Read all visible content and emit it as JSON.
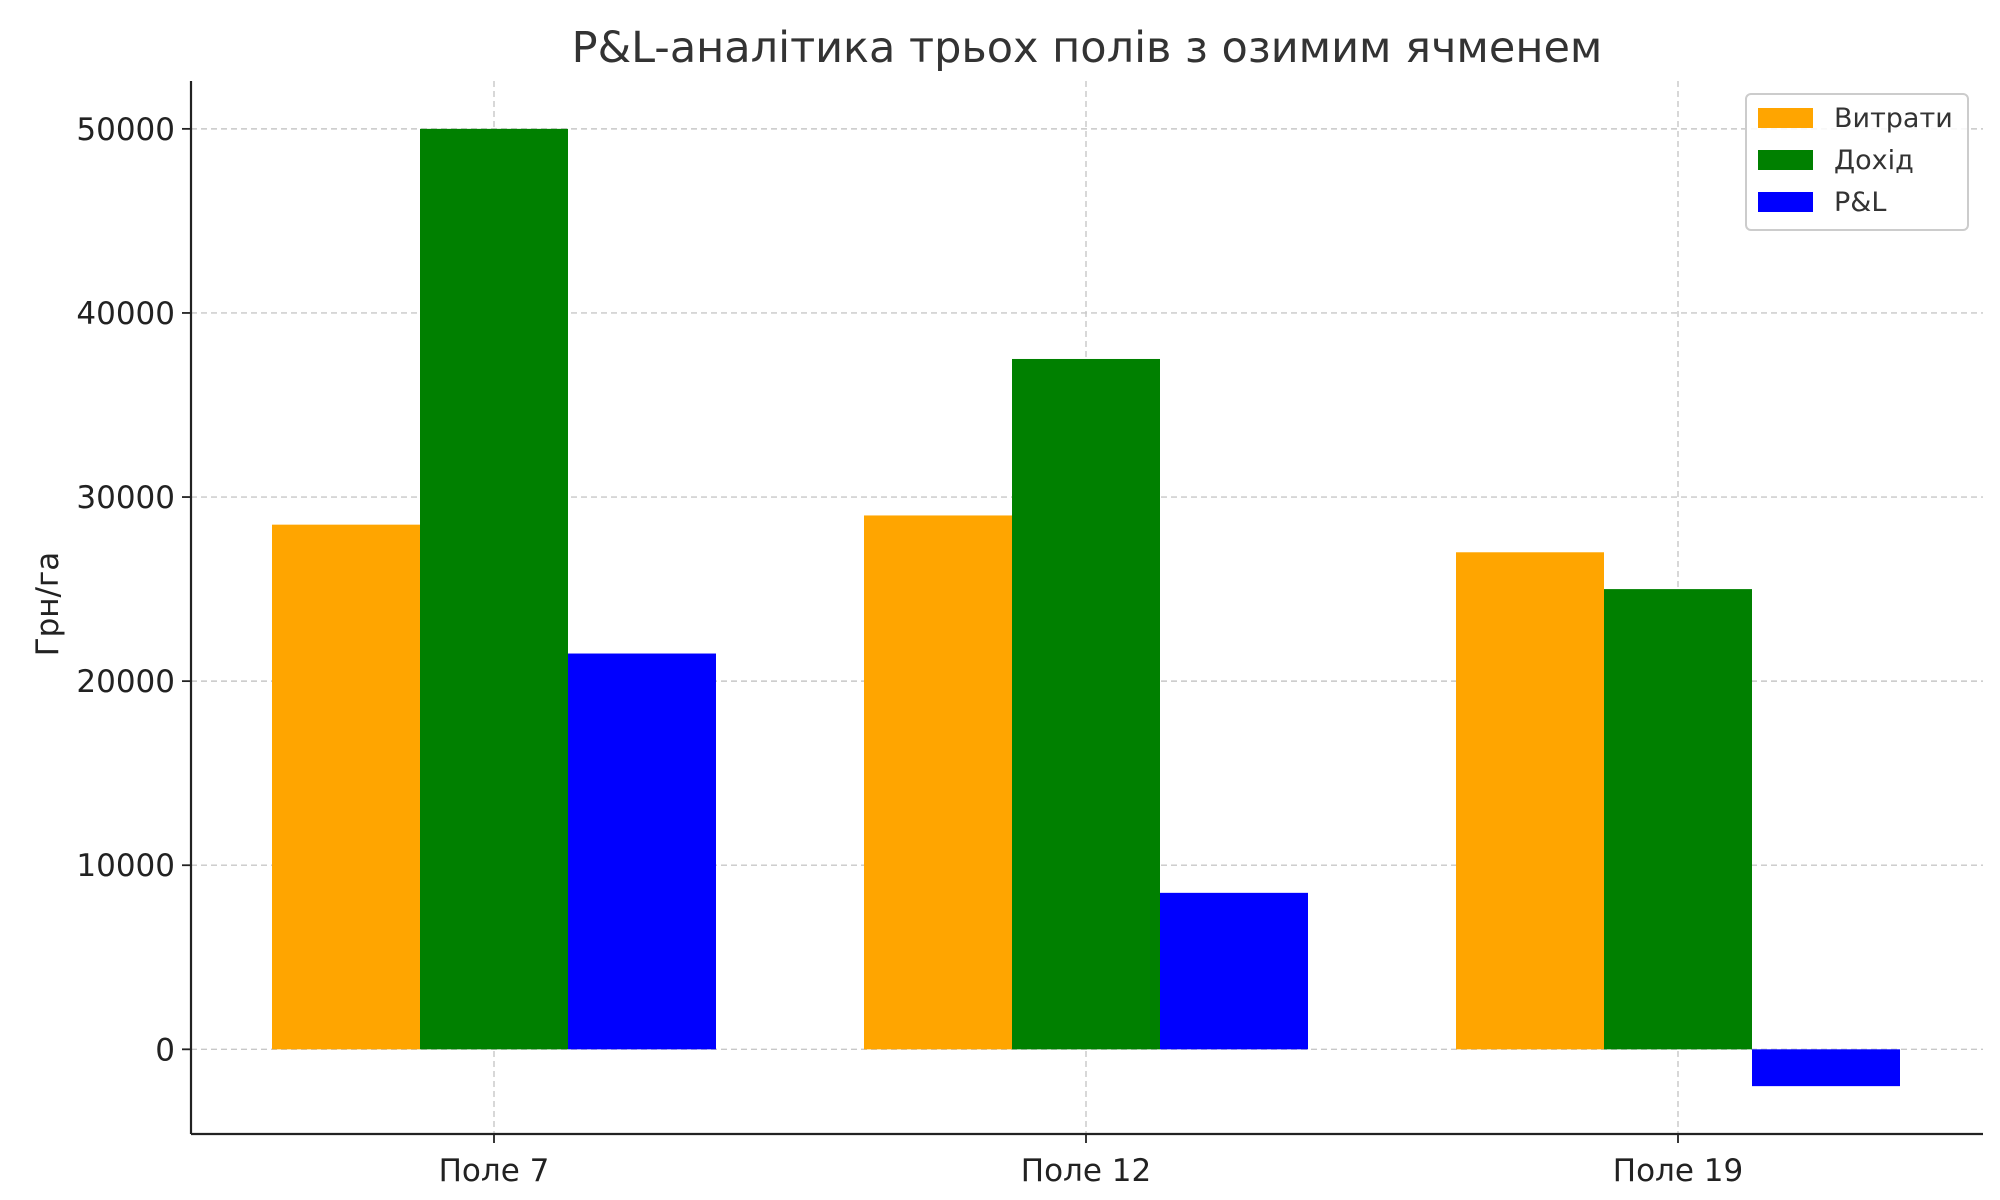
{
  "chart_data": {
    "type": "bar",
    "title": "P&L-аналітика трьох полів з озимим ячменем",
    "xlabel": "",
    "ylabel": "Грн/га",
    "categories": [
      "Поле 7",
      "Поле 12",
      "Поле 19"
    ],
    "series": [
      {
        "name": "Витрати",
        "color": "#FFA500",
        "values": [
          28500,
          29000,
          27000
        ]
      },
      {
        "name": "Дохід",
        "color": "#008000",
        "values": [
          50000,
          37500,
          25000
        ]
      },
      {
        "name": "P&L",
        "color": "#0000FF",
        "values": [
          21500,
          8500,
          -2000
        ]
      }
    ],
    "ylim": [
      -4600,
      52600
    ],
    "yticks": [
      0,
      10000,
      20000,
      30000,
      40000,
      50000
    ],
    "ytick_labels": [
      "0",
      "10000",
      "20000",
      "30000",
      "40000",
      "50000"
    ],
    "grid": true,
    "legend": "top-right"
  }
}
